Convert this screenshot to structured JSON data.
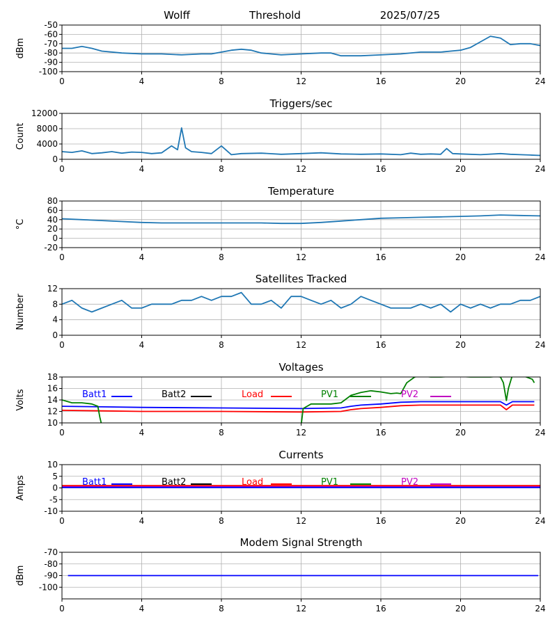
{
  "header": {
    "station": "Wolff",
    "mode": "Threshold",
    "date": "2025/07/25"
  },
  "chart_data": [
    {
      "type": "line",
      "title": "",
      "ylabel": "dBm",
      "ylim": [
        -100,
        -50
      ],
      "yticks": [
        -100,
        -90,
        -80,
        -70,
        -60,
        -50
      ],
      "xlim": [
        0,
        24
      ],
      "xticks": [
        0,
        4,
        8,
        12,
        16,
        20,
        24
      ],
      "grid": true,
      "series": [
        {
          "color": "#1f77b4",
          "x": [
            0,
            0.5,
            1,
            1.5,
            2,
            3,
            4,
            5,
            6,
            7,
            7.5,
            8,
            8.5,
            9,
            9.5,
            10,
            11,
            12,
            13,
            13.5,
            14,
            15,
            16,
            17,
            18,
            19,
            19.5,
            20,
            20.5,
            21,
            21.5,
            22,
            22.5,
            23,
            23.5,
            24
          ],
          "y": [
            -75,
            -75,
            -73,
            -75,
            -78,
            -80,
            -81,
            -81,
            -82,
            -81,
            -81,
            -79,
            -77,
            -76,
            -77,
            -80,
            -82,
            -81,
            -80,
            -80,
            -83,
            -83,
            -82,
            -81,
            -79,
            -79,
            -78,
            -77,
            -74,
            -68,
            -62,
            -64,
            -71,
            -70,
            -70,
            -72
          ]
        }
      ]
    },
    {
      "type": "line",
      "title": "Triggers/sec",
      "ylabel": "Count",
      "ylim": [
        0,
        12000
      ],
      "yticks": [
        0,
        4000,
        8000,
        12000
      ],
      "xlim": [
        0,
        24
      ],
      "xticks": [
        0,
        4,
        8,
        12,
        16,
        20,
        24
      ],
      "grid": true,
      "series": [
        {
          "color": "#1f77b4",
          "x": [
            0,
            0.5,
            1,
            1.5,
            2,
            2.5,
            3,
            3.5,
            4,
            4.5,
            5,
            5.5,
            5.8,
            6,
            6.2,
            6.5,
            7,
            7.5,
            8,
            8.5,
            9,
            10,
            11,
            12,
            13,
            14,
            15,
            16,
            17,
            17.5,
            18,
            18.5,
            19,
            19.3,
            19.6,
            20,
            21,
            22,
            22.5,
            23,
            23.5,
            24
          ],
          "y": [
            2000,
            1800,
            2200,
            1500,
            1700,
            2000,
            1600,
            1900,
            1800,
            1500,
            1700,
            3500,
            2500,
            8200,
            3000,
            2000,
            1800,
            1500,
            3500,
            1200,
            1500,
            1600,
            1300,
            1500,
            1700,
            1400,
            1300,
            1400,
            1200,
            1600,
            1300,
            1400,
            1300,
            2800,
            1500,
            1400,
            1200,
            1500,
            1300,
            1200,
            1100,
            1000
          ]
        }
      ]
    },
    {
      "type": "line",
      "title": "Temperature",
      "ylabel": "°C",
      "ylim": [
        -20,
        80
      ],
      "yticks": [
        -20,
        0,
        20,
        40,
        60,
        80
      ],
      "xlim": [
        0,
        24
      ],
      "xticks": [
        0,
        4,
        8,
        12,
        16,
        20,
        24
      ],
      "grid": true,
      "series": [
        {
          "color": "#1f77b4",
          "x": [
            0,
            1,
            2,
            3,
            4,
            5,
            6,
            8,
            10,
            11,
            12,
            13,
            14,
            15,
            16,
            17,
            18,
            19,
            20,
            21,
            22,
            23,
            24
          ],
          "y": [
            42,
            40,
            38,
            36,
            34,
            33,
            33,
            33,
            33,
            32,
            32,
            34,
            37,
            40,
            43,
            44,
            45,
            46,
            47,
            48,
            50,
            49,
            48
          ]
        }
      ]
    },
    {
      "type": "line",
      "title": "Satellites Tracked",
      "ylabel": "Number",
      "ylim": [
        0,
        12
      ],
      "yticks": [
        0,
        4,
        8,
        12
      ],
      "xlim": [
        0,
        24
      ],
      "xticks": [
        0,
        4,
        8,
        12,
        16,
        20,
        24
      ],
      "grid": true,
      "series": [
        {
          "color": "#1f77b4",
          "x": [
            0,
            0.5,
            1,
            1.5,
            2,
            2.5,
            3,
            3.5,
            4,
            4.5,
            5,
            5.5,
            6,
            6.5,
            7,
            7.5,
            8,
            8.5,
            9,
            9.5,
            10,
            10.5,
            11,
            11.5,
            12,
            12.5,
            13,
            13.5,
            14,
            14.5,
            15,
            15.5,
            16,
            16.5,
            17,
            17.5,
            18,
            18.5,
            19,
            19.5,
            20,
            20.5,
            21,
            21.5,
            22,
            22.5,
            23,
            23.5,
            24
          ],
          "y": [
            8,
            9,
            7,
            6,
            7,
            8,
            9,
            7,
            7,
            8,
            8,
            8,
            9,
            9,
            10,
            9,
            10,
            10,
            11,
            8,
            8,
            9,
            7,
            10,
            10,
            9,
            8,
            9,
            7,
            8,
            10,
            9,
            8,
            7,
            7,
            7,
            8,
            7,
            8,
            6,
            8,
            7,
            8,
            7,
            8,
            8,
            9,
            9,
            10
          ]
        }
      ]
    },
    {
      "type": "line",
      "title": "Voltages",
      "ylabel": "Volts",
      "ylim": [
        10,
        18
      ],
      "yticks": [
        10,
        12,
        14,
        16,
        18
      ],
      "xlim": [
        0,
        24
      ],
      "xticks": [
        0,
        4,
        8,
        12,
        16,
        20,
        24
      ],
      "grid": true,
      "legend": [
        "Batt1",
        "Batt2",
        "Load",
        "PV1",
        "PV2"
      ],
      "legend_colors": [
        "#0000ff",
        "#000000",
        "#ff0000",
        "#008000",
        "#c000c0"
      ],
      "series": [
        {
          "name": "Batt1",
          "color": "#0000ff",
          "x": [
            0,
            2,
            4,
            8,
            12,
            14,
            14.5,
            15,
            16,
            17,
            18,
            20,
            22,
            22.3,
            22.6,
            23,
            23.7
          ],
          "y": [
            12.9,
            12.8,
            12.7,
            12.6,
            12.5,
            12.6,
            12.9,
            13.1,
            13.3,
            13.6,
            13.7,
            13.7,
            13.7,
            13.1,
            13.7,
            13.7,
            13.7
          ]
        },
        {
          "name": "Load",
          "color": "#ff0000",
          "x": [
            0,
            2,
            4,
            8,
            12,
            14,
            14.5,
            15,
            16,
            17,
            18,
            20,
            22,
            22.3,
            22.6,
            23,
            23.7
          ],
          "y": [
            12.2,
            12.1,
            12.0,
            12.0,
            11.9,
            12.0,
            12.3,
            12.5,
            12.7,
            13.0,
            13.1,
            13.1,
            13.1,
            12.3,
            13.1,
            13.1,
            13.1
          ]
        },
        {
          "name": "PV1",
          "color": "#008000",
          "x": [
            0,
            0.5,
            1,
            1.5,
            1.8,
            1.9,
            2.0
          ],
          "y": [
            14.0,
            13.5,
            13.5,
            13.3,
            12.9,
            11.0,
            9.5
          ]
        },
        {
          "name": "PV1",
          "color": "#008000",
          "x": [
            12.0,
            12.1,
            12.5,
            13.0,
            13.5,
            14.0,
            14.5,
            15.0,
            15.5,
            16.0,
            16.5,
            16.8,
            17.0,
            17.3,
            17.7,
            18.0,
            18.5,
            19.0,
            19.5,
            20.0,
            20.5,
            21.0,
            21.5,
            21.8,
            22.0,
            22.15,
            22.3,
            22.4,
            22.6,
            22.8,
            23.0,
            23.3,
            23.6,
            23.7
          ],
          "y": [
            9.5,
            12.5,
            13.3,
            13.3,
            13.3,
            13.5,
            14.8,
            15.3,
            15.6,
            15.4,
            15.1,
            15.2,
            15.1,
            17.0,
            18.0,
            18.2,
            18.0,
            18.0,
            18.1,
            18.1,
            18.0,
            18.0,
            18.0,
            18.1,
            18.0,
            17.0,
            13.9,
            16.0,
            18.3,
            18.4,
            18.3,
            18.0,
            17.6,
            17.0
          ]
        }
      ]
    },
    {
      "type": "line",
      "title": "Currents",
      "ylabel": "Amps",
      "ylim": [
        -10,
        10
      ],
      "yticks": [
        -10,
        -5,
        0,
        5,
        10
      ],
      "xlim": [
        0,
        24
      ],
      "xticks": [
        0,
        4,
        8,
        12,
        16,
        20,
        24
      ],
      "grid": true,
      "legend": [
        "Batt1",
        "Batt2",
        "Load",
        "PV1",
        "PV2"
      ],
      "legend_colors": [
        "#0000ff",
        "#000000",
        "#ff0000",
        "#008000",
        "#c000c0"
      ],
      "series": [
        {
          "name": "PV2",
          "color": "#c000c0",
          "x": [
            0,
            24
          ],
          "y": [
            0.6,
            0.6
          ]
        },
        {
          "name": "Batt1",
          "color": "#0000ff",
          "x": [
            0,
            24
          ],
          "y": [
            0.2,
            0.2
          ]
        },
        {
          "name": "Load",
          "color": "#ff0000",
          "x": [
            0,
            24
          ],
          "y": [
            1.0,
            1.0
          ]
        }
      ]
    },
    {
      "type": "line",
      "title": "Modem Signal Strength",
      "ylabel": "dBm",
      "ylim": [
        -110,
        -70
      ],
      "yticks": [
        -100,
        -90,
        -80,
        -70
      ],
      "xlim": [
        0,
        24
      ],
      "xticks": [
        0,
        4,
        8,
        12,
        16,
        20,
        24
      ],
      "grid": true,
      "series": [
        {
          "color": "#0000ff",
          "x": [
            0.3,
            23.9
          ],
          "y": [
            -90,
            -90
          ]
        }
      ]
    }
  ]
}
